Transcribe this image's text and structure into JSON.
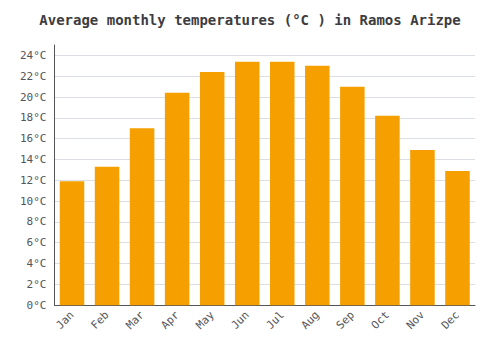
{
  "chart_data": {
    "type": "bar",
    "title": "Average monthly temperatures (°C ) in Ramos Arizpe",
    "categories": [
      "Jan",
      "Feb",
      "Mar",
      "Apr",
      "May",
      "Jun",
      "Jul",
      "Aug",
      "Sep",
      "Oct",
      "Nov",
      "Dec"
    ],
    "values": [
      11.9,
      13.3,
      17.0,
      20.4,
      22.4,
      23.4,
      23.4,
      23.0,
      21.0,
      18.2,
      14.9,
      12.9
    ],
    "color": "#F5A000",
    "ylim": [
      0,
      25
    ],
    "yticks": [
      {
        "value": 0,
        "label": "0°C"
      },
      {
        "value": 2,
        "label": "2°C"
      },
      {
        "value": 4,
        "label": "4°C"
      },
      {
        "value": 6,
        "label": "6°C"
      },
      {
        "value": 8,
        "label": "8°C"
      },
      {
        "value": 10,
        "label": "10°C"
      },
      {
        "value": 12,
        "label": "12°C"
      },
      {
        "value": 14,
        "label": "14°C"
      },
      {
        "value": 16,
        "label": "16°C"
      },
      {
        "value": 18,
        "label": "18°C"
      },
      {
        "value": 20,
        "label": "20°C"
      },
      {
        "value": 22,
        "label": "22°C"
      },
      {
        "value": 24,
        "label": "24°C"
      }
    ],
    "grid": true
  }
}
